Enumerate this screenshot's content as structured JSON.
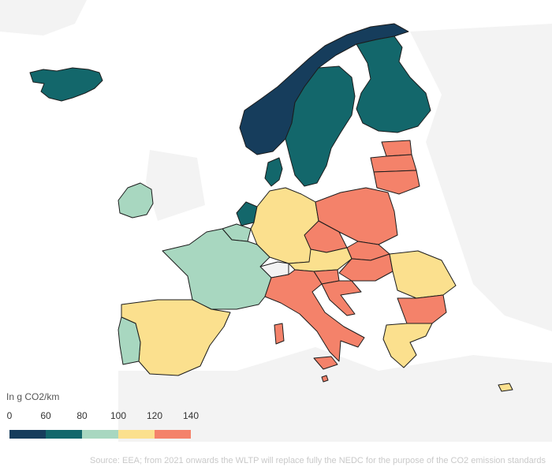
{
  "legend": {
    "title": "In g CO2/km",
    "ticks": [
      "0",
      "60",
      "80",
      "100",
      "120",
      "140"
    ],
    "colors": [
      "#163d5c",
      "#13676b",
      "#a8d7c0",
      "#fbe08e",
      "#f4826a"
    ]
  },
  "source": "Source: EEA; from 2021 onwards the WLTP will replace fully the NEDC for the purpose of the CO2 emission standards",
  "palette": {
    "0-60": "#163d5c",
    "60-80": "#13676b",
    "80-100": "#a8d7c0",
    "100-120": "#fbe08e",
    "120-140": "#f4826a",
    "no_data": "#f3f3f3"
  },
  "countries": [
    {
      "name": "Norway",
      "bin": "0-60"
    },
    {
      "name": "Iceland",
      "bin": "60-80"
    },
    {
      "name": "Sweden",
      "bin": "60-80"
    },
    {
      "name": "Finland",
      "bin": "60-80"
    },
    {
      "name": "Denmark",
      "bin": "60-80"
    },
    {
      "name": "Netherlands",
      "bin": "60-80"
    },
    {
      "name": "Ireland",
      "bin": "80-100"
    },
    {
      "name": "France",
      "bin": "80-100"
    },
    {
      "name": "Portugal",
      "bin": "80-100"
    },
    {
      "name": "Belgium",
      "bin": "80-100"
    },
    {
      "name": "Germany",
      "bin": "100-120"
    },
    {
      "name": "Spain",
      "bin": "100-120"
    },
    {
      "name": "Austria",
      "bin": "100-120"
    },
    {
      "name": "Romania",
      "bin": "100-120"
    },
    {
      "name": "Greece",
      "bin": "100-120"
    },
    {
      "name": "Cyprus",
      "bin": "100-120"
    },
    {
      "name": "Poland",
      "bin": "120-140"
    },
    {
      "name": "Lithuania",
      "bin": "120-140"
    },
    {
      "name": "Latvia",
      "bin": "120-140"
    },
    {
      "name": "Estonia",
      "bin": "120-140"
    },
    {
      "name": "Czechia",
      "bin": "120-140"
    },
    {
      "name": "Slovakia",
      "bin": "120-140"
    },
    {
      "name": "Hungary",
      "bin": "120-140"
    },
    {
      "name": "Italy",
      "bin": "120-140"
    },
    {
      "name": "Slovenia",
      "bin": "120-140"
    },
    {
      "name": "Croatia",
      "bin": "120-140"
    },
    {
      "name": "Bulgaria",
      "bin": "120-140"
    },
    {
      "name": "Malta",
      "bin": "120-140"
    },
    {
      "name": "Switzerland",
      "bin": "no_data"
    }
  ]
}
